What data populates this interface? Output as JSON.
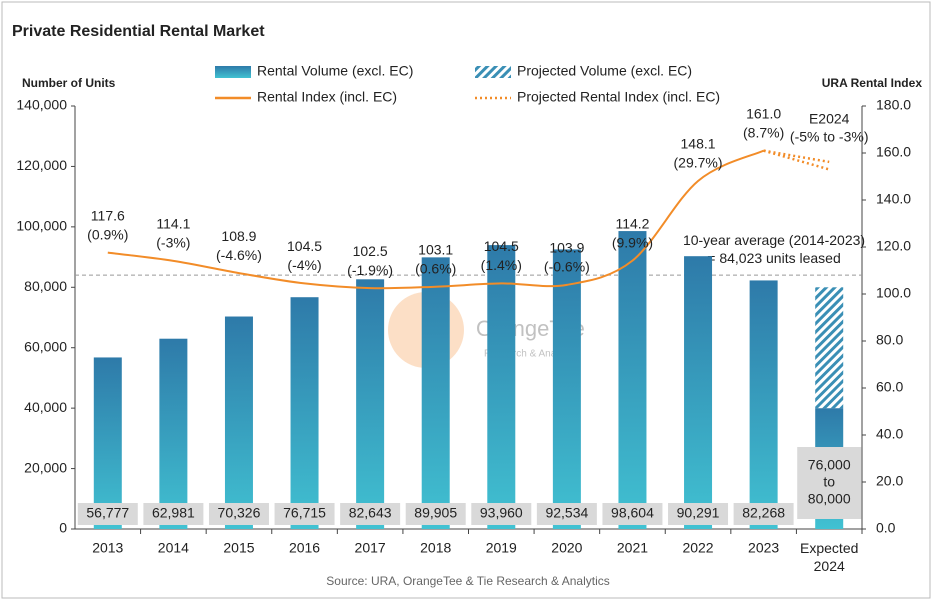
{
  "chart_data": {
    "type": "bar_line",
    "title": "Private Residential Rental Market",
    "y_label": "Number of Units",
    "y2_label": "URA Rental Index",
    "source": "Source: URA, OrangeTee & Tie Research & Analytics",
    "watermark": [
      "OrangeTee",
      "Research & Analytics"
    ],
    "categories": [
      "2013",
      "2014",
      "2015",
      "2016",
      "2017",
      "2018",
      "2019",
      "2020",
      "2021",
      "2022",
      "2023",
      "Expected 2024"
    ],
    "ylim": [
      0,
      140000
    ],
    "yticks": [
      0,
      {
        "value": 20000,
        "label": "20,000"
      },
      {
        "value": 40000,
        "label": "40,000"
      },
      {
        "value": 60000,
        "label": "60,000"
      },
      {
        "value": 80000,
        "label": "80,000"
      },
      {
        "value": 100000,
        "label": "100,000"
      },
      {
        "value": 120000,
        "label": "120,000"
      },
      {
        "value": 140000,
        "label": "140,000"
      }
    ],
    "y2lim": [
      0,
      180
    ],
    "y2ticks": [
      {
        "value": 0,
        "label": "0.0"
      },
      {
        "value": 20,
        "label": "20.0"
      },
      {
        "value": 40,
        "label": "40.0"
      },
      {
        "value": 60,
        "label": "60.0"
      },
      {
        "value": 80,
        "label": "80.0"
      },
      {
        "value": 100,
        "label": "100.0"
      },
      {
        "value": 120,
        "label": "120.0"
      },
      {
        "value": 140,
        "label": "140.0"
      },
      {
        "value": 160,
        "label": "160.0"
      },
      {
        "value": 180,
        "label": "180.0"
      }
    ],
    "series": [
      {
        "name": "Rental Volume (excl. EC)",
        "kind": "bar",
        "color": "#3391b8",
        "values": [
          56777,
          62981,
          70326,
          76715,
          82643,
          89905,
          93960,
          92534,
          98604,
          90291,
          82268,
          40000
        ],
        "value_labels": [
          "56,777",
          "62,981",
          "70,326",
          "76,715",
          "82,643",
          "89,905",
          "93,960",
          "92,534",
          "98,604",
          "90,291",
          "82,268",
          null
        ]
      },
      {
        "name": "Projected Volume (excl. EC)",
        "kind": "hatched_bar",
        "color": "#3a8fb5",
        "values": [
          null,
          null,
          null,
          null,
          null,
          null,
          null,
          null,
          null,
          null,
          null,
          40000
        ]
      },
      {
        "name": "Rental Index (incl. EC)",
        "kind": "line",
        "axis": "y2",
        "color": "#f28c28",
        "values": [
          117.6,
          114.1,
          108.9,
          104.5,
          102.5,
          103.1,
          104.5,
          103.9,
          114.2,
          148.1,
          161.0,
          null
        ],
        "value_labels": [
          "117.6",
          "114.1",
          "108.9",
          "104.5",
          "102.5",
          "103.1",
          "104.5",
          "103.9",
          "114.2",
          "148.1",
          "161.0",
          null
        ],
        "changes": [
          "(0.9%)",
          "(-3%)",
          "(-4.6%)",
          "(-4%)",
          "(-1.9%)",
          "(0.6%)",
          "(1.4%)",
          "(-0.6%)",
          "(9.9%)",
          "(29.7%)",
          "(8.7%)",
          null
        ]
      },
      {
        "name": "Projected Rental Index (incl. EC)",
        "kind": "dotted_line",
        "axis": "y2",
        "color": "#f28c28",
        "values": [
          null,
          null,
          null,
          null,
          null,
          null,
          null,
          null,
          null,
          null,
          161.0,
          156.2
        ],
        "values_low": [
          null,
          null,
          null,
          null,
          null,
          null,
          null,
          null,
          null,
          null,
          161.0,
          153.0
        ]
      }
    ],
    "projection_label": [
      "E2024",
      "(-5% to -3%)"
    ],
    "expected_volume_label": [
      "76,000",
      "to",
      "80,000"
    ],
    "average": {
      "value": 84023,
      "label": [
        "10-year average (2014-2023)",
        "= 84,023 units leased"
      ]
    }
  }
}
